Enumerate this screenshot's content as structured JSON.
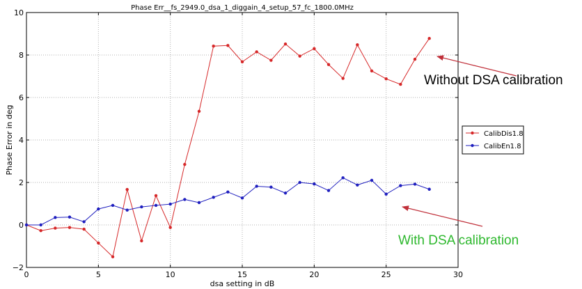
{
  "chart_data": {
    "type": "line",
    "title": "Phase Err__fs_2949.0_dsa_1_diggain_4_setup_57_fc_1800.0MHz",
    "xlabel": "dsa setting in dB",
    "ylabel": "Phase Error in deg",
    "xlim": [
      0,
      30
    ],
    "ylim": [
      -2,
      10
    ],
    "xticks": [
      "0",
      "5",
      "10",
      "15",
      "20",
      "25",
      "30"
    ],
    "yticks": [
      "−2",
      "0",
      "2",
      "4",
      "6",
      "8",
      "10"
    ],
    "grid": true,
    "legend_position": "right",
    "series": [
      {
        "name": "CalibDis1.8",
        "color": "#d62728",
        "x": [
          0,
          1,
          2,
          3,
          4,
          5,
          6,
          7,
          8,
          9,
          10,
          11,
          12,
          13,
          14,
          15,
          16,
          17,
          18,
          19,
          20,
          21,
          22,
          23,
          24,
          25,
          26,
          27,
          28
        ],
        "y": [
          0,
          -0.27,
          -0.15,
          -0.12,
          -0.2,
          -0.85,
          -1.5,
          1.67,
          -0.75,
          1.38,
          -0.12,
          2.85,
          5.35,
          8.42,
          8.45,
          7.68,
          8.15,
          7.75,
          8.52,
          7.95,
          8.3,
          7.55,
          6.9,
          8.48,
          7.25,
          6.88,
          6.62,
          7.8,
          8.78
        ]
      },
      {
        "name": "CalibEn1.8",
        "color": "#1f1fbf",
        "x": [
          0,
          1,
          2,
          3,
          4,
          5,
          6,
          7,
          8,
          9,
          10,
          11,
          12,
          13,
          14,
          15,
          16,
          17,
          18,
          19,
          20,
          21,
          22,
          23,
          24,
          25,
          26,
          27,
          28
        ],
        "y": [
          0,
          0,
          0.35,
          0.37,
          0.15,
          0.75,
          0.92,
          0.7,
          0.85,
          0.92,
          0.98,
          1.2,
          1.05,
          1.3,
          1.55,
          1.27,
          1.82,
          1.78,
          1.5,
          2.0,
          1.93,
          1.62,
          2.22,
          1.88,
          2.1,
          1.45,
          1.85,
          1.92,
          1.68
        ]
      }
    ],
    "annotations": [
      {
        "text": "Without DSA calibration",
        "color": "#000000",
        "arrow_target": {
          "x": 28.3,
          "y": 8.0
        }
      },
      {
        "text": "With DSA calibration",
        "color": "#2eb82e",
        "arrow_target": {
          "x": 26.0,
          "y": 0.9
        }
      }
    ],
    "arrow_color": "#c0303a"
  }
}
